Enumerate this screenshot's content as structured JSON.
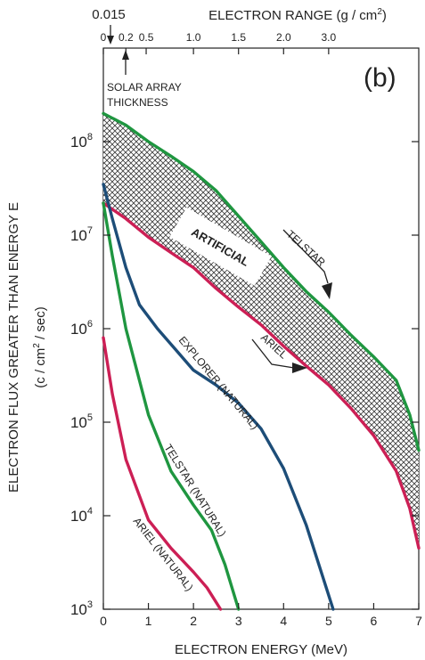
{
  "chart_data": {
    "type": "line",
    "panel_label": "(b)",
    "xlabel": "ELECTRON ENERGY (MeV)",
    "ylabel_main": "ELECTRON FLUX GREATER THAN ENERGY E",
    "ylabel_unit_pre": "(c / cm",
    "ylabel_unit_exp": "2",
    "ylabel_unit_post": " / sec)",
    "top_axis_label_pre": "ELECTRON RANGE (g / cm",
    "top_axis_label_exp": "2",
    "top_axis_label_post": ")",
    "x_ticks": [
      "0",
      "1",
      "2",
      "3",
      "4",
      "5",
      "6",
      "7"
    ],
    "xlim": [
      0,
      7
    ],
    "y_scale": "log",
    "ylim": [
      1000,
      1000000000
    ],
    "y_ticks": [
      {
        "base": "10",
        "exp": "3",
        "value": 1000
      },
      {
        "base": "10",
        "exp": "4",
        "value": 10000
      },
      {
        "base": "10",
        "exp": "5",
        "value": 100000
      },
      {
        "base": "10",
        "exp": "6",
        "value": 1000000
      },
      {
        "base": "10",
        "exp": "7",
        "value": 10000000
      },
      {
        "base": "10",
        "exp": "8",
        "value": 100000000
      }
    ],
    "top_ticks": [
      {
        "label": "0",
        "energy": 0.0
      },
      {
        "label": "0.2",
        "energy": 0.5
      },
      {
        "label": "0.5",
        "energy": 0.95
      },
      {
        "label": "1.0",
        "energy": 2.0
      },
      {
        "label": "1.5",
        "energy": 3.0
      },
      {
        "label": "2.0",
        "energy": 4.0
      },
      {
        "label": "3.0",
        "energy": 5.0
      }
    ],
    "top_marker": {
      "label": "0.015",
      "energy": 0.15
    },
    "solar_array": {
      "label_line1": "SOLAR ARRAY",
      "label_line2": "THICKNESS",
      "energy": 0.5
    },
    "band_label": "ARTIFICIAL",
    "series": [
      {
        "name": "TELSTAR",
        "color": "#1f9640",
        "x": [
          0,
          0.5,
          1,
          1.5,
          2,
          2.5,
          3,
          3.5,
          4,
          4.5,
          5,
          5.5,
          6,
          6.5,
          6.8,
          7
        ],
        "y": [
          200000000,
          150000000,
          100000000,
          70000000,
          48000000,
          30000000,
          16000000,
          8500000,
          4500000,
          2500000,
          1500000,
          850000,
          500000,
          280000,
          120000,
          50000
        ]
      },
      {
        "name": "ARIEL",
        "color": "#cc1f55",
        "x": [
          0,
          0.5,
          1,
          1.5,
          2,
          2.5,
          3,
          3.5,
          4,
          4.5,
          5,
          5.5,
          6,
          6.5,
          6.8,
          7
        ],
        "y": [
          22000000,
          15000000,
          9500000,
          6500000,
          4500000,
          2700000,
          1700000,
          1100000,
          650000,
          400000,
          250000,
          140000,
          72000,
          30000,
          12000,
          4500
        ]
      },
      {
        "name": "EXPLORER (NATURAL)",
        "color": "#1d4d78",
        "x": [
          0,
          0.2,
          0.5,
          0.8,
          1.2,
          1.6,
          2,
          2.5,
          3,
          3.5,
          4,
          4.5,
          5.1
        ],
        "y": [
          35000000,
          15000000,
          4500000,
          1800000,
          1000000,
          600000,
          360000,
          250000,
          160000,
          85000,
          32000,
          8000,
          1000
        ]
      },
      {
        "name": "TELSTAR (NATURAL)",
        "color": "#1f9640",
        "x": [
          0,
          0.2,
          0.5,
          1,
          1.5,
          2,
          2.4,
          2.7,
          3.0
        ],
        "y": [
          22000000,
          6000000,
          1000000,
          120000,
          30000,
          13000,
          7000,
          3000,
          1000
        ]
      },
      {
        "name": "ARIEL (NATURAL)",
        "color": "#cc1f55",
        "x": [
          0,
          0.2,
          0.5,
          1,
          1.5,
          2,
          2.3,
          2.6
        ],
        "y": [
          800000,
          200000,
          40000,
          9000,
          4500,
          2500,
          1700,
          1000
        ]
      }
    ],
    "annotations": {
      "telstar": "TELSTAR",
      "ariel": "ARIEL",
      "explorer_natural": "EXPLORER (NATURAL)",
      "telstar_natural": "TELSTAR (NATURAL)",
      "ariel_natural": "ARIEL (NATURAL)"
    }
  }
}
